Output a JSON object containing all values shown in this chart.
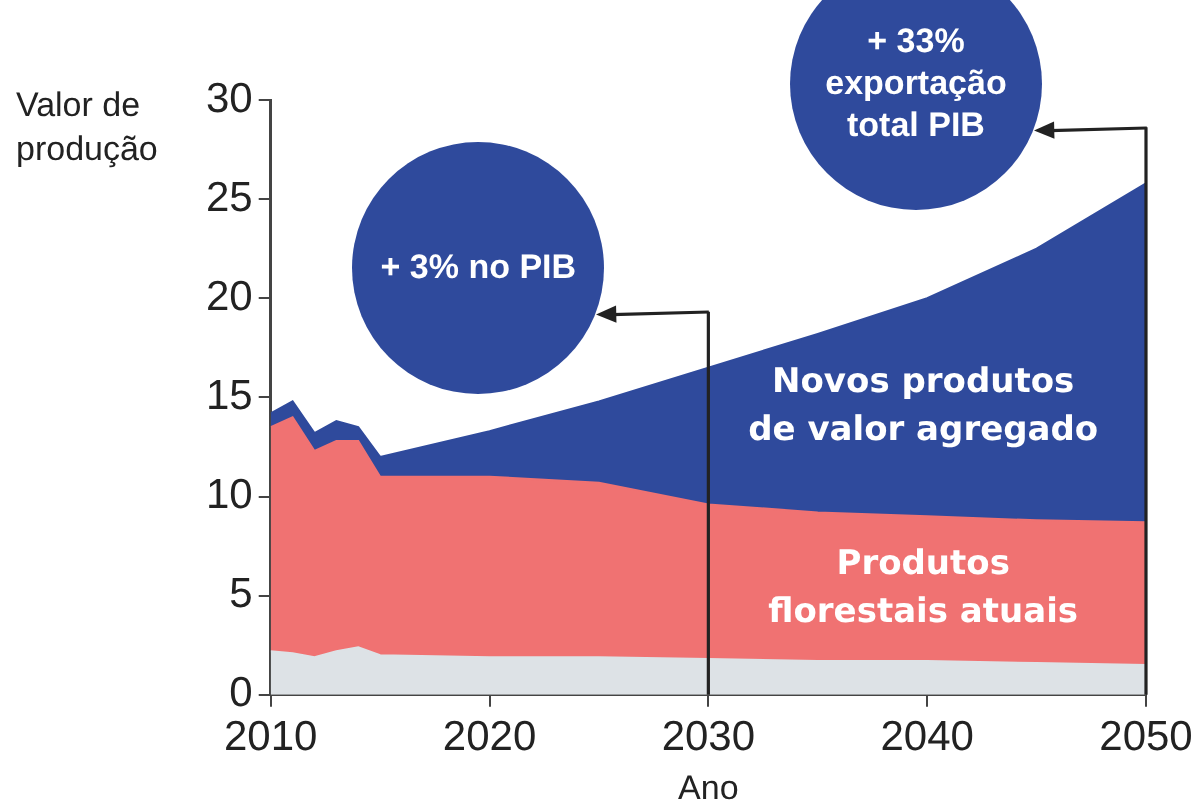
{
  "chart_data": {
    "type": "area",
    "stacked": true,
    "xlabel": "Ano",
    "ylabel": "Valor de produção",
    "x": [
      2010,
      2011,
      2012,
      2013,
      2014,
      2015,
      2020,
      2025,
      2030,
      2035,
      2040,
      2045,
      2050
    ],
    "series": [
      {
        "color": "#dde2e6",
        "values": [
          2.2,
          2.1,
          1.9,
          2.2,
          2.4,
          2.0,
          1.9,
          1.9,
          1.8,
          1.7,
          1.7,
          1.6,
          1.5
        ]
      },
      {
        "name": "Produtos florestais atuais",
        "color": "#f07272",
        "values": [
          11.3,
          11.9,
          10.4,
          10.6,
          10.4,
          9.0,
          9.1,
          8.8,
          7.8,
          7.5,
          7.3,
          7.2,
          7.2
        ]
      },
      {
        "name": "Novos produtos de valor agregado",
        "color": "#2f4a9c",
        "values": [
          0.7,
          0.8,
          0.9,
          1.0,
          0.7,
          1.0,
          2.3,
          4.1,
          6.9,
          9.0,
          11.0,
          13.7,
          17.1
        ]
      }
    ],
    "xlim": [
      2010,
      2050
    ],
    "xticks": [
      2010,
      2020,
      2030,
      2040,
      2050
    ],
    "ylim": [
      0,
      30
    ],
    "yticks": [
      0,
      5,
      10,
      15,
      20,
      25,
      30
    ],
    "legend": false,
    "ref_lines": [
      {
        "axis": "x",
        "value": 2030,
        "color": "#222222"
      },
      {
        "axis": "x",
        "value": 2050,
        "color": "#222222"
      }
    ],
    "annotations": [
      "+ 3% no PIB",
      "+ 33% exportação total PIB"
    ]
  }
}
